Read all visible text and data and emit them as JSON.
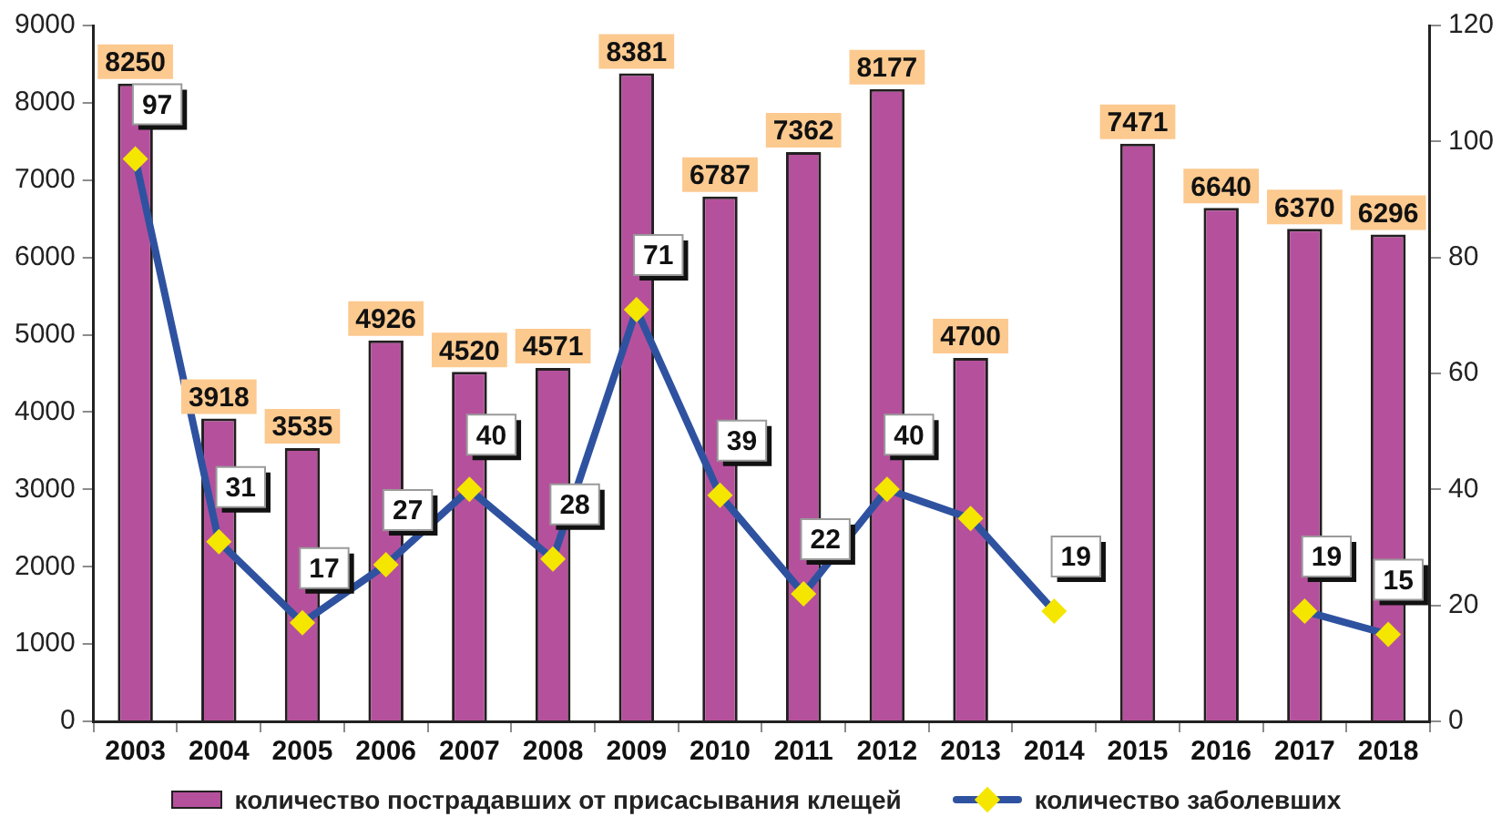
{
  "chart_data": {
    "type": "bar",
    "categories": [
      "2003",
      "2004",
      "2005",
      "2006",
      "2007",
      "2008",
      "2009",
      "2010",
      "2011",
      "2012",
      "2013",
      "2014",
      "2015",
      "2016",
      "2017",
      "2018"
    ],
    "series": [
      {
        "name": "количество пострадавших от присасывания клещей",
        "color": "#b5519c",
        "values": [
          8250,
          3918,
          3535,
          4926,
          4520,
          4571,
          8381,
          6787,
          7362,
          8177,
          4700,
          null,
          7471,
          6640,
          6370,
          6296
        ],
        "value_labels": [
          "8250",
          "3918",
          "3535",
          "4926",
          "4520",
          "4571",
          "8381",
          "6787",
          "7362",
          "8177",
          "4700",
          null,
          "7471",
          "6640",
          "6370",
          "6296"
        ]
      },
      {
        "name": "количество заболевших",
        "type": "line",
        "axis": "y2",
        "color": "#2f52a0",
        "colors": [
          "#f5e600",
          "#f5e600",
          "#f5e600",
          "#f5e600",
          "#f5e600",
          "#f5e600",
          "#f5e600",
          "#f5e600",
          "#f5e600",
          "#f5e600",
          "#f5e600",
          "#f5e600",
          "#f5e600",
          "#f5e600",
          "#f5e600",
          "#f5e600"
        ],
        "values": [
          97,
          31,
          17,
          27,
          40,
          28,
          71,
          39,
          22,
          40,
          35,
          19,
          null,
          null,
          19,
          15
        ],
        "value_labels": [
          "97",
          "31",
          "17",
          "27",
          "40",
          "28",
          "71",
          "39",
          "22",
          "40",
          null,
          "19",
          null,
          null,
          "19",
          "15"
        ]
      }
    ],
    "ylim": [
      0,
      9000
    ],
    "yticks": [
      0,
      1000,
      2000,
      3000,
      4000,
      5000,
      6000,
      7000,
      8000,
      9000
    ],
    "y2lim": [
      0,
      120
    ],
    "y2ticks": [
      0,
      20,
      40,
      60,
      80,
      100,
      120
    ],
    "grid": false,
    "legend": "bottom",
    "marker": "diamond",
    "line_style": "solid"
  }
}
